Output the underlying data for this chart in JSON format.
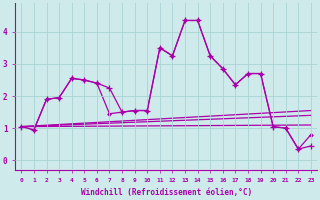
{
  "xlabel": "Windchill (Refroidissement éolien,°C)",
  "background_color": "#ceeaea",
  "grid_color": "#aad4d4",
  "line_color": "#aa00aa",
  "x_ticks": [
    0,
    1,
    2,
    3,
    4,
    5,
    6,
    7,
    8,
    9,
    10,
    11,
    12,
    13,
    14,
    15,
    16,
    17,
    18,
    19,
    20,
    21,
    22,
    23
  ],
  "ylim": [
    -0.3,
    4.9
  ],
  "xlim": [
    -0.5,
    23.5
  ],
  "series1": [
    1.05,
    0.95,
    1.9,
    1.95,
    2.55,
    2.5,
    2.4,
    2.25,
    1.5,
    1.55,
    1.55,
    3.5,
    3.25,
    4.35,
    4.35,
    3.25,
    2.85,
    2.35,
    2.7,
    2.7,
    1.05,
    1.0,
    0.35,
    0.45
  ],
  "series2": [
    1.05,
    0.95,
    1.9,
    1.95,
    2.55,
    2.5,
    2.4,
    1.45,
    1.5,
    1.55,
    1.55,
    3.5,
    3.25,
    4.35,
    4.35,
    3.25,
    2.85,
    2.35,
    2.7,
    2.7,
    1.05,
    1.0,
    0.35,
    0.8
  ],
  "trend1_start": 1.05,
  "trend1_end": 1.55,
  "trend2_start": 1.05,
  "trend2_end": 1.4,
  "trend3_start": 1.05,
  "trend3_end": 1.1
}
